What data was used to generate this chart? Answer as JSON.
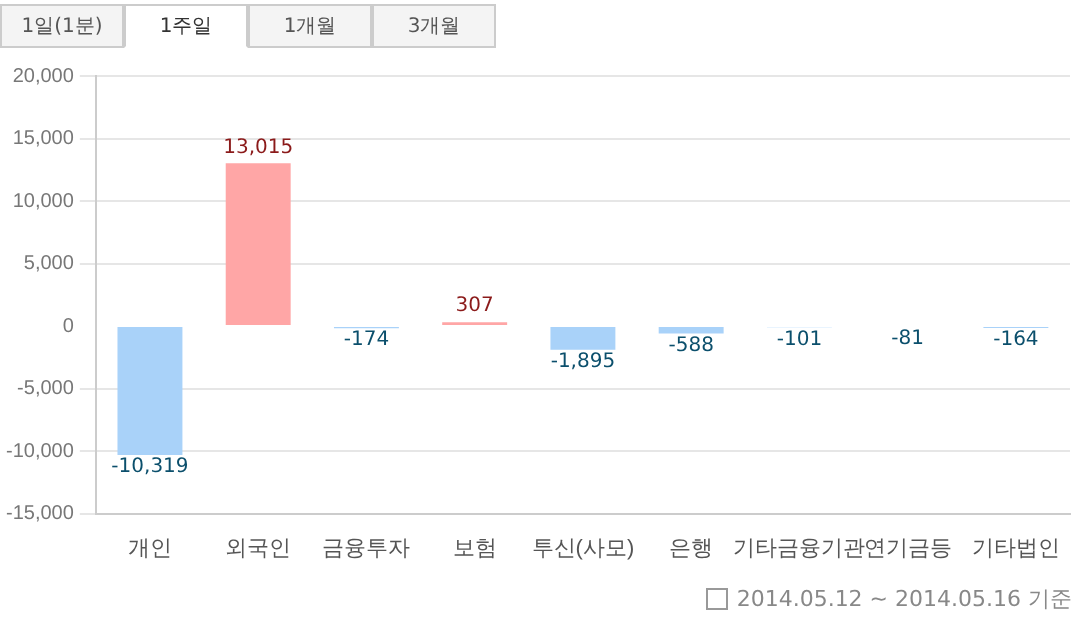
{
  "chart_data": {
    "type": "bar",
    "categories": [
      "개인",
      "외국인",
      "금융투자",
      "보험",
      "투신(사모)",
      "은행",
      "기타금융기관",
      "연기금등",
      "기타법인"
    ],
    "values": [
      -10319,
      13015,
      -174,
      307,
      -1895,
      -588,
      -101,
      -81,
      -164
    ],
    "value_labels": [
      "-10,319",
      "13,015",
      "-174",
      "307",
      "-1,895",
      "-588",
      "-101",
      "-81",
      "-164"
    ],
    "colors": [
      "#a9d2f9",
      "#ffa6a6",
      "#a9d2f9",
      "#ffa6a6",
      "#a9d2f9",
      "#a9d2f9",
      "#a9d2f9",
      "#a9d2f9",
      "#a9d2f9"
    ],
    "ylim": [
      -15000,
      20000
    ],
    "yticks": [
      {
        "value": -15000,
        "label": "-15,000"
      },
      {
        "value": -10000,
        "label": "-10,000"
      },
      {
        "value": -5000,
        "label": "-5,000"
      },
      0,
      {
        "value": 5000,
        "label": "5,000"
      },
      {
        "value": 10000,
        "label": "10,000"
      },
      {
        "value": 15000,
        "label": "15,000"
      },
      {
        "value": 20000,
        "label": "20,000"
      }
    ],
    "grid": "y",
    "legend": false,
    "annotations": [
      "1일(1분)",
      "1주일",
      "1개월",
      "3개월",
      "2014.05.12 ~ 2014.05.16 기준"
    ]
  }
}
